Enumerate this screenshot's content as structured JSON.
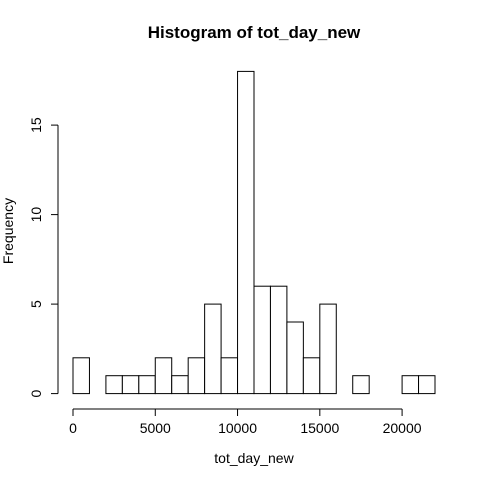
{
  "chart_data": {
    "type": "histogram",
    "title": "Histogram of tot_day_new",
    "xlabel": "tot_day_new",
    "ylabel": "Frequency",
    "bin_width": 1000,
    "bins": [
      {
        "start": 0,
        "end": 1000,
        "count": 2
      },
      {
        "start": 1000,
        "end": 2000,
        "count": 0
      },
      {
        "start": 2000,
        "end": 3000,
        "count": 1
      },
      {
        "start": 3000,
        "end": 4000,
        "count": 1
      },
      {
        "start": 4000,
        "end": 5000,
        "count": 1
      },
      {
        "start": 5000,
        "end": 6000,
        "count": 2
      },
      {
        "start": 6000,
        "end": 7000,
        "count": 1
      },
      {
        "start": 7000,
        "end": 8000,
        "count": 2
      },
      {
        "start": 8000,
        "end": 9000,
        "count": 5
      },
      {
        "start": 9000,
        "end": 10000,
        "count": 2
      },
      {
        "start": 10000,
        "end": 11000,
        "count": 18
      },
      {
        "start": 11000,
        "end": 12000,
        "count": 6
      },
      {
        "start": 12000,
        "end": 13000,
        "count": 6
      },
      {
        "start": 13000,
        "end": 14000,
        "count": 4
      },
      {
        "start": 14000,
        "end": 15000,
        "count": 2
      },
      {
        "start": 15000,
        "end": 16000,
        "count": 5
      },
      {
        "start": 16000,
        "end": 17000,
        "count": 0
      },
      {
        "start": 17000,
        "end": 18000,
        "count": 1
      },
      {
        "start": 18000,
        "end": 19000,
        "count": 0
      },
      {
        "start": 19000,
        "end": 20000,
        "count": 0
      },
      {
        "start": 20000,
        "end": 21000,
        "count": 1
      },
      {
        "start": 21000,
        "end": 22000,
        "count": 1
      }
    ],
    "x_ticks": [
      0,
      5000,
      10000,
      15000,
      20000
    ],
    "x_tick_labels": [
      "0",
      "5000",
      "10000",
      "15000",
      "20000"
    ],
    "y_ticks": [
      0,
      5,
      10,
      15
    ],
    "y_tick_labels": [
      "0",
      "5",
      "10",
      "15"
    ],
    "xlim": [
      0,
      22000
    ],
    "ylim": [
      0,
      18
    ],
    "bar_fill": "#ffffff",
    "bar_stroke": "#000000",
    "grid": false
  }
}
